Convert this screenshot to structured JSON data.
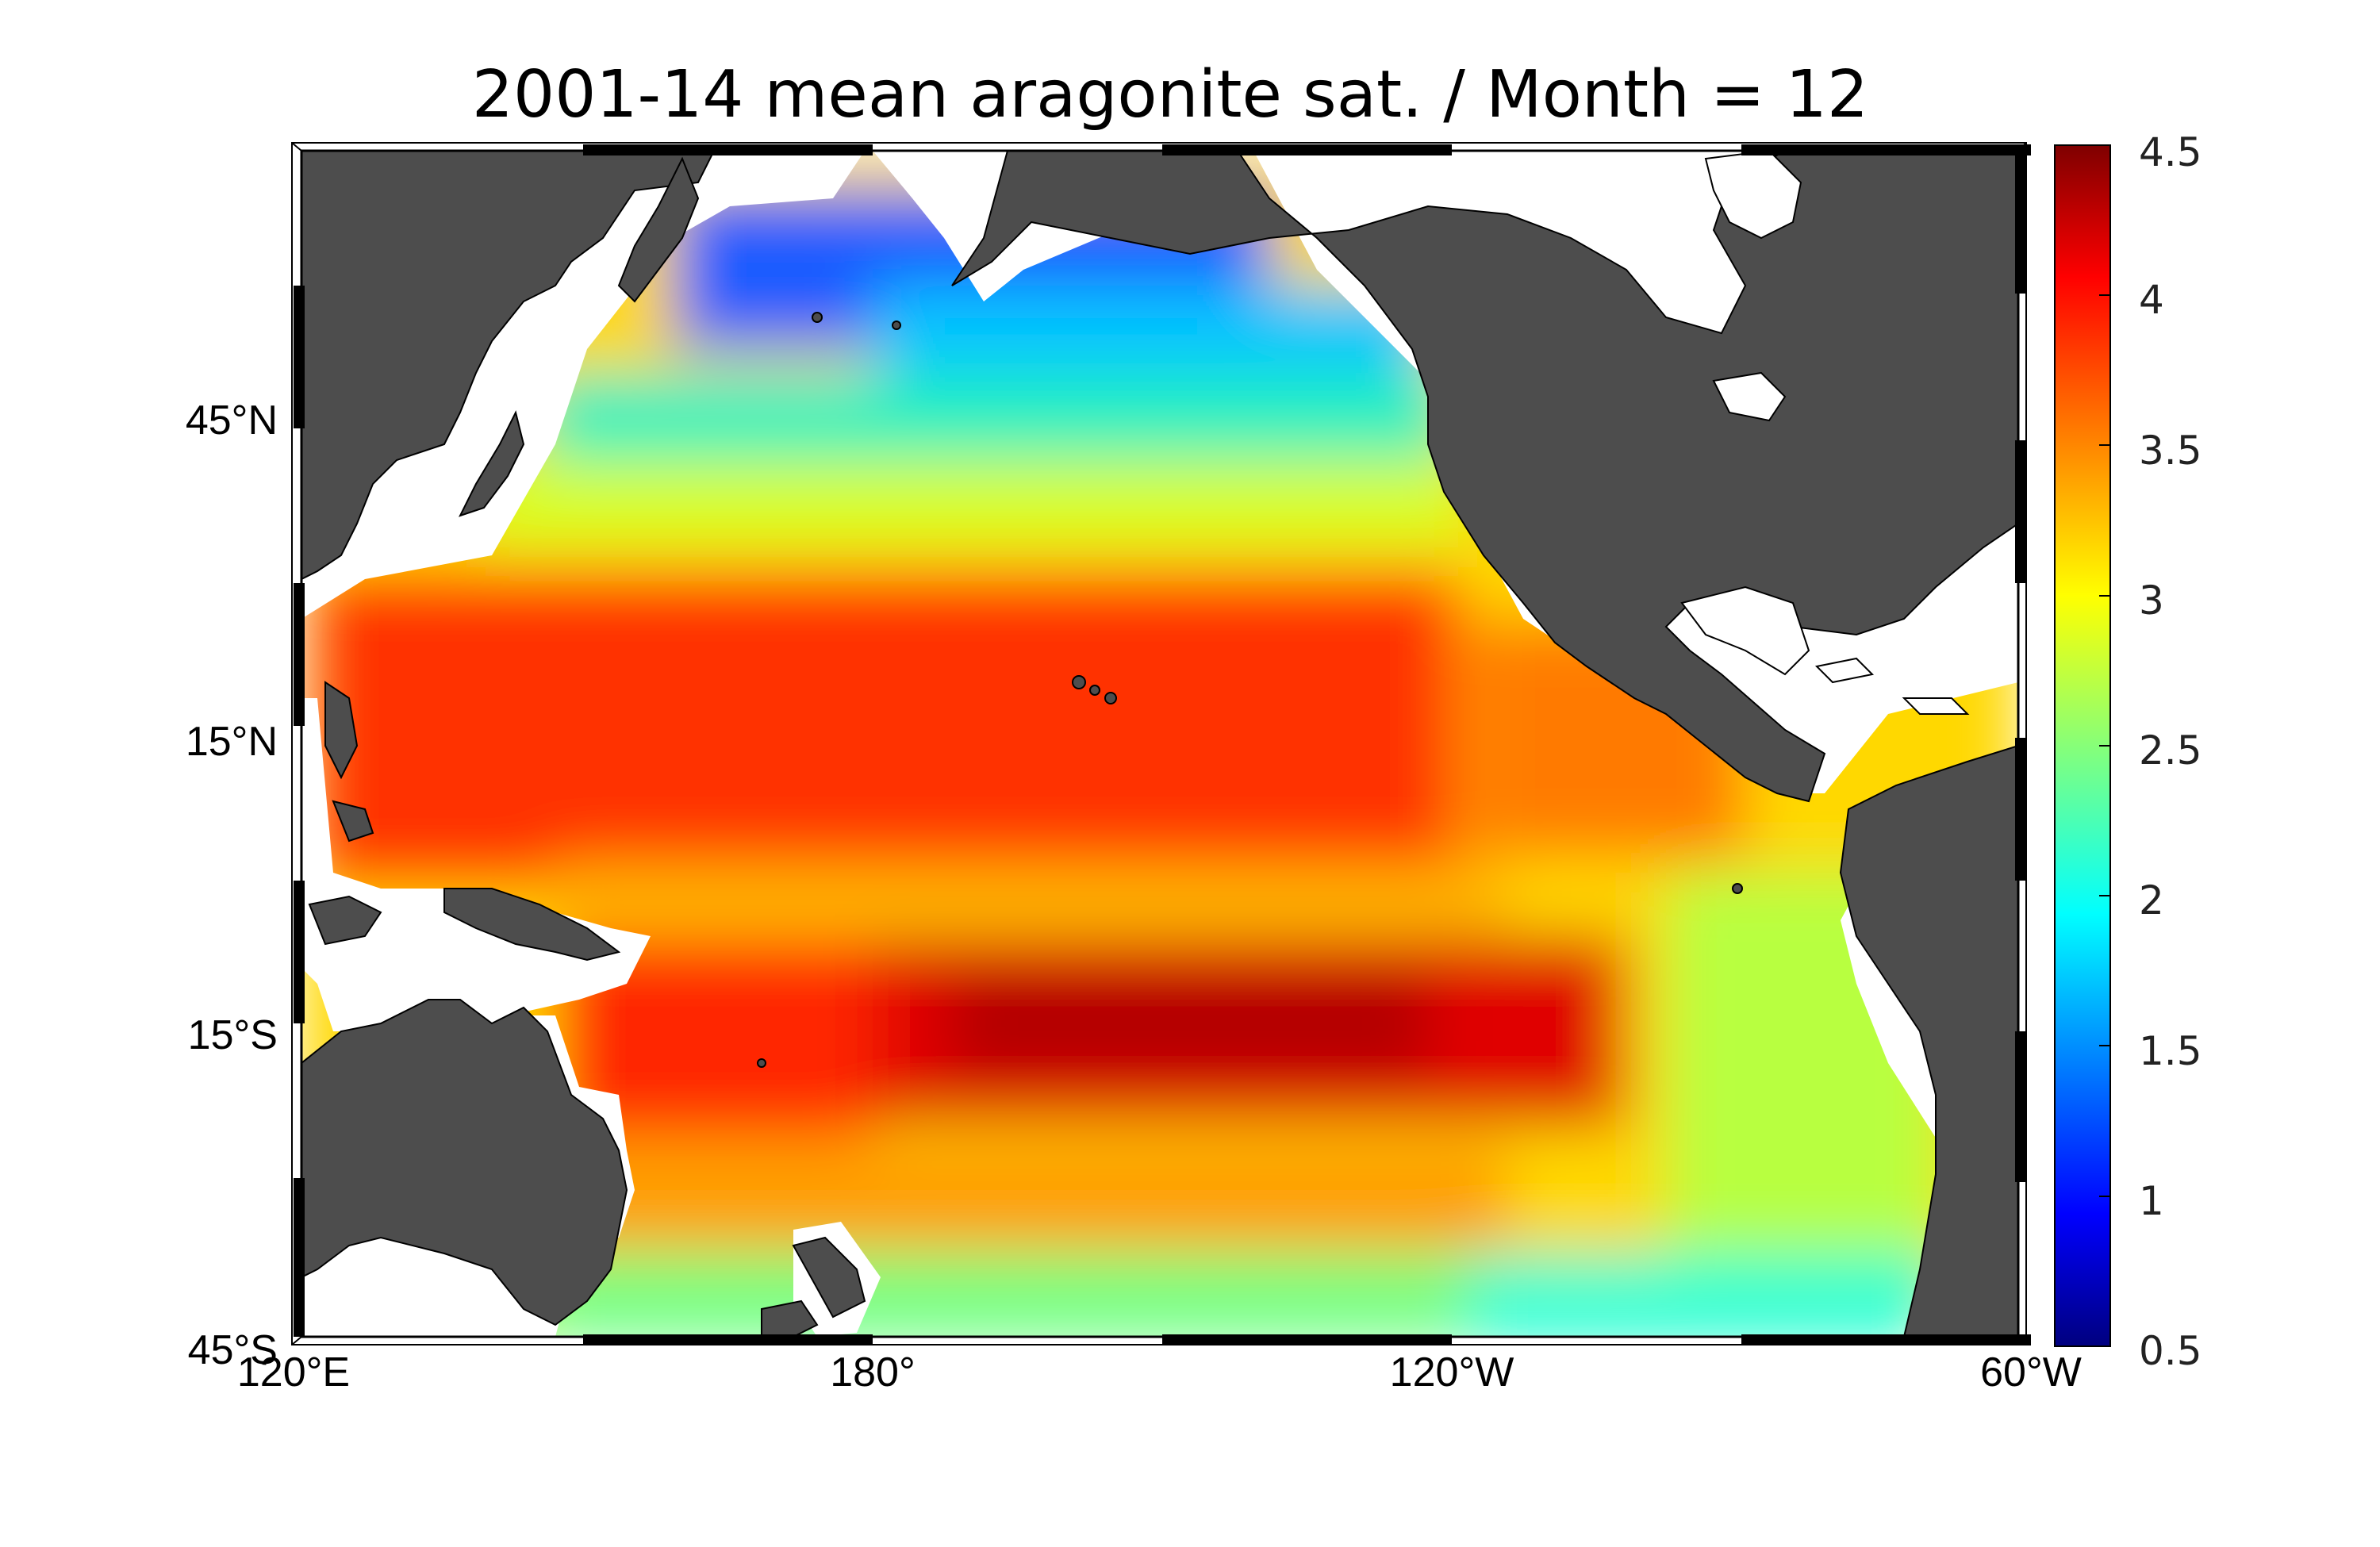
{
  "title": "2001-14 mean aragonite sat. / Month = 12",
  "map": {
    "projection": "equidistant cylindrical",
    "lon_range": [
      "120°E",
      "60°W"
    ],
    "lat_range": [
      "45°S",
      "65°N"
    ],
    "lat_ticks": [
      "45°N",
      "15°N",
      "15°S",
      "45°S"
    ],
    "lon_ticks": [
      "120°E",
      "180°",
      "120°W",
      "60°W"
    ],
    "land_color": "#4d4d4d",
    "nodata_color": "#ffffff",
    "field_description": "aragonite saturation state",
    "regions": [
      {
        "region": "Subarctic North Pacific / Bering Sea",
        "value": 1.3
      },
      {
        "region": "Gulf of Alaska",
        "value": 1.7
      },
      {
        "region": "North Pacific ~40°N",
        "value": 2.6
      },
      {
        "region": "North Pacific subtropical gyre",
        "value": 4.0
      },
      {
        "region": "Eastern tropical North Pacific",
        "value": 3.6
      },
      {
        "region": "Equatorial Pacific",
        "value": 3.2
      },
      {
        "region": "South Pacific subtropical gyre",
        "value": 4.4
      },
      {
        "region": "Coral Sea / Tasman",
        "value": 3.9
      },
      {
        "region": "Off Peru/Chile",
        "value": 2.8
      },
      {
        "region": "Southern Ocean ~40°S",
        "value": 2.3
      }
    ]
  },
  "colorbar": {
    "colormap": "jet",
    "min": 0.5,
    "max": 4.5,
    "ticks": [
      "4.5",
      "4",
      "3.5",
      "3",
      "2.5",
      "2",
      "1.5",
      "1",
      "0.5"
    ]
  }
}
